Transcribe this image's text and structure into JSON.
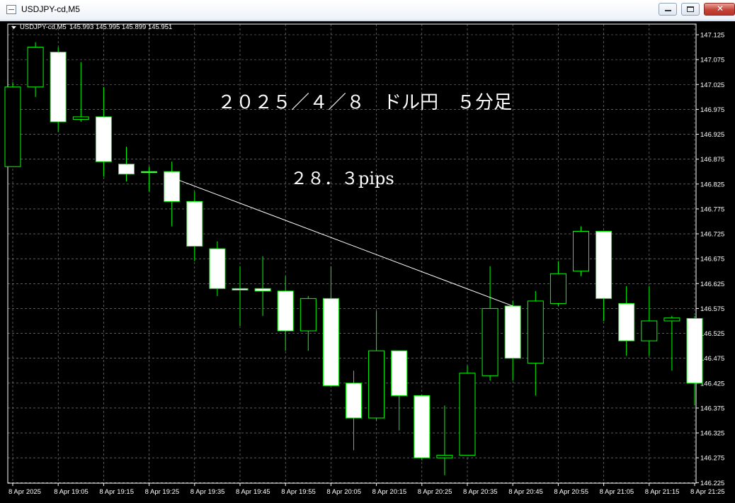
{
  "window": {
    "title": "USDJPY-cd,M5"
  },
  "header": {
    "symbol_period": "USDJPY-cd,M5",
    "ohlc": "145.993 145.995 145.899 145.951"
  },
  "annotations": {
    "title_text": "２０２５／４／８　ドル円　５分足",
    "pips_text": "２８．３pips"
  },
  "colors": {
    "background": "#000000",
    "grid": "#c0c0c0",
    "candle_wick": "#00ff00",
    "bull_body": "#000000",
    "bear_body": "#ffffff",
    "trendline": "#ffffff"
  },
  "chart_data": {
    "type": "candlestick",
    "y_ticks": [
      "146.225",
      "146.275",
      "146.325",
      "146.375",
      "146.425",
      "146.475",
      "146.525",
      "146.575",
      "146.625",
      "146.675",
      "146.725",
      "146.775",
      "146.825",
      "146.875",
      "146.925",
      "146.975",
      "147.025",
      "147.075",
      "147.125"
    ],
    "x_ticks": [
      "8 Apr 2025",
      "8 Apr 19:05",
      "8 Apr 19:15",
      "8 Apr 19:25",
      "8 Apr 19:35",
      "8 Apr 19:45",
      "8 Apr 19:55",
      "8 Apr 20:05",
      "8 Apr 20:15",
      "8 Apr 20:25",
      "8 Apr 20:35",
      "8 Apr 20:45",
      "8 Apr 20:55",
      "8 Apr 21:05",
      "8 Apr 21:15",
      "8 Apr 21:25"
    ],
    "ylim": [
      146.215,
      147.145
    ],
    "grid": true,
    "candles": [
      {
        "o": 146.86,
        "h": 147.03,
        "l": 146.86,
        "c": 147.02
      },
      {
        "o": 147.02,
        "h": 147.11,
        "l": 147.0,
        "c": 147.1
      },
      {
        "o": 147.09,
        "h": 147.1,
        "l": 146.93,
        "c": 146.95
      },
      {
        "o": 146.955,
        "h": 147.07,
        "l": 146.95,
        "c": 146.96
      },
      {
        "o": 146.96,
        "h": 147.02,
        "l": 146.84,
        "c": 146.87
      },
      {
        "o": 146.865,
        "h": 146.9,
        "l": 146.83,
        "c": 146.845
      },
      {
        "o": 146.85,
        "h": 146.86,
        "l": 146.81,
        "c": 146.848
      },
      {
        "o": 146.85,
        "h": 146.87,
        "l": 146.74,
        "c": 146.79
      },
      {
        "o": 146.79,
        "h": 146.81,
        "l": 146.67,
        "c": 146.7
      },
      {
        "o": 146.695,
        "h": 146.71,
        "l": 146.6,
        "c": 146.615
      },
      {
        "o": 146.615,
        "h": 146.66,
        "l": 146.54,
        "c": 146.612
      },
      {
        "o": 146.615,
        "h": 146.68,
        "l": 146.56,
        "c": 146.61
      },
      {
        "o": 146.61,
        "h": 146.64,
        "l": 146.49,
        "c": 146.53
      },
      {
        "o": 146.53,
        "h": 146.6,
        "l": 146.49,
        "c": 146.595
      },
      {
        "o": 146.595,
        "h": 146.66,
        "l": 146.42,
        "c": 146.42
      },
      {
        "o": 146.425,
        "h": 146.45,
        "l": 146.29,
        "c": 146.355
      },
      {
        "o": 146.355,
        "h": 146.57,
        "l": 146.35,
        "c": 146.49
      },
      {
        "o": 146.49,
        "h": 146.49,
        "l": 146.33,
        "c": 146.4
      },
      {
        "o": 146.4,
        "h": 146.4,
        "l": 146.27,
        "c": 146.275
      },
      {
        "o": 146.275,
        "h": 146.38,
        "l": 146.24,
        "c": 146.28
      },
      {
        "o": 146.28,
        "h": 146.46,
        "l": 146.28,
        "c": 146.445
      },
      {
        "o": 146.44,
        "h": 146.66,
        "l": 146.43,
        "c": 146.575
      },
      {
        "o": 146.58,
        "h": 146.59,
        "l": 146.43,
        "c": 146.475
      },
      {
        "o": 146.465,
        "h": 146.61,
        "l": 146.4,
        "c": 146.59
      },
      {
        "o": 146.585,
        "h": 146.67,
        "l": 146.58,
        "c": 146.645
      },
      {
        "o": 146.65,
        "h": 146.74,
        "l": 146.64,
        "c": 146.73
      },
      {
        "o": 146.73,
        "h": 146.73,
        "l": 146.55,
        "c": 146.595
      },
      {
        "o": 146.585,
        "h": 146.62,
        "l": 146.48,
        "c": 146.51
      },
      {
        "o": 146.51,
        "h": 146.62,
        "l": 146.48,
        "c": 146.55
      },
      {
        "o": 146.55,
        "h": 146.56,
        "l": 146.45,
        "c": 146.556
      },
      {
        "o": 146.555,
        "h": 146.56,
        "l": 146.38,
        "c": 146.425
      }
    ],
    "trendline": {
      "from_candle": 7,
      "from_price": 146.838,
      "to_candle": 22,
      "to_price": 146.58
    }
  }
}
